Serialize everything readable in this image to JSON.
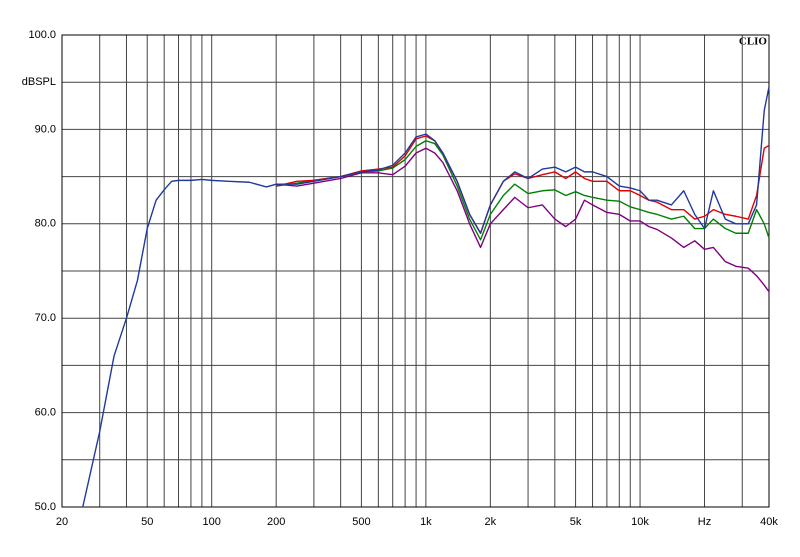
{
  "chart_data": {
    "type": "line",
    "brand": "CLIO",
    "x_log": true,
    "grid": true,
    "xlim": [
      20,
      40000
    ],
    "ylim": [
      50,
      100
    ],
    "xticks": [
      20,
      50,
      100,
      200,
      500,
      {
        "value": 1000,
        "label": "1k"
      },
      {
        "value": 2000,
        "label": "2k"
      },
      {
        "value": 5000,
        "label": "5k"
      },
      {
        "value": 10000,
        "label": "10k"
      },
      {
        "value": 20000,
        "label": "Hz"
      },
      {
        "value": 40000,
        "label": "40k"
      }
    ],
    "x_minor_ticks": [
      30,
      40,
      60,
      70,
      80,
      90,
      300,
      400,
      600,
      700,
      800,
      900,
      3000,
      4000,
      6000,
      7000,
      8000,
      9000,
      30000
    ],
    "yticks": [
      {
        "value": 50,
        "label": "50.0"
      },
      {
        "value": 60,
        "label": "60.0"
      },
      {
        "value": 70,
        "label": "70.0"
      },
      {
        "value": 80,
        "label": "80.0"
      },
      {
        "value": 90,
        "label": "90.0"
      },
      {
        "value": 95,
        "label": "dBSPL"
      },
      {
        "value": 100,
        "label": "100.0"
      }
    ],
    "y_minor_ticks": [
      55,
      65,
      75,
      85
    ],
    "x": [
      25,
      30,
      35,
      40,
      45,
      50,
      55,
      60,
      65,
      70,
      80,
      90,
      100,
      120,
      150,
      180,
      200,
      250,
      300,
      400,
      500,
      600,
      700,
      800,
      900,
      1000,
      1100,
      1200,
      1400,
      1600,
      1800,
      2000,
      2300,
      2600,
      3000,
      3500,
      4000,
      4500,
      5000,
      5500,
      6000,
      7000,
      8000,
      9000,
      10000,
      11000,
      12000,
      14000,
      16000,
      18000,
      20000,
      22000,
      25000,
      28000,
      32000,
      35000,
      38000,
      40000
    ],
    "series": [
      {
        "color": "#800080",
        "values": [
          null,
          null,
          null,
          null,
          null,
          null,
          null,
          null,
          null,
          null,
          null,
          null,
          null,
          null,
          null,
          null,
          84.2,
          84,
          84.3,
          84.8,
          85.4,
          85.4,
          85.2,
          86.1,
          87.5,
          88,
          87.5,
          86.5,
          83.5,
          80,
          77.5,
          80,
          81.5,
          82.8,
          81.7,
          82,
          80.5,
          79.7,
          80.5,
          82.5,
          82,
          81.2,
          81,
          80.3,
          80.3,
          79.7,
          79.4,
          78.5,
          77.5,
          78.2,
          77.3,
          77.5,
          76,
          75.5,
          75.3,
          74.5,
          73.5,
          72.8
        ]
      },
      {
        "color": "#008000",
        "values": [
          null,
          null,
          null,
          null,
          null,
          null,
          null,
          null,
          null,
          null,
          null,
          null,
          null,
          null,
          null,
          null,
          84,
          84.3,
          84.6,
          85,
          85.5,
          85.6,
          85.9,
          86.8,
          88.2,
          88.8,
          88.5,
          87.3,
          84,
          80.5,
          78.3,
          81,
          83,
          84.2,
          83.2,
          83.5,
          83.6,
          83,
          83.4,
          83,
          82.8,
          82.5,
          82.4,
          81.8,
          81.5,
          81.2,
          81,
          80.5,
          80.8,
          79.5,
          79.5,
          80.5,
          79.5,
          79,
          79,
          81.5,
          80,
          78.5
        ]
      },
      {
        "color": "#e00000",
        "values": [
          null,
          null,
          null,
          null,
          null,
          null,
          null,
          null,
          null,
          null,
          null,
          null,
          null,
          null,
          null,
          null,
          84,
          84.5,
          84.6,
          85,
          85.6,
          85.8,
          86,
          87.2,
          89,
          89.3,
          88.8,
          87.5,
          84.5,
          81,
          79,
          82,
          84.5,
          85.3,
          84.8,
          85.2,
          85.5,
          84.8,
          85.5,
          84.8,
          84.5,
          84.5,
          83.5,
          83.5,
          83,
          82.5,
          82.3,
          81.5,
          81.5,
          80.5,
          80.8,
          81.5,
          81,
          80.8,
          80.5,
          83,
          88,
          88.3
        ]
      },
      {
        "color": "#1f3a9e",
        "values": [
          50,
          58,
          66,
          70,
          74,
          79.5,
          82.5,
          83.6,
          84.5,
          84.6,
          84.6,
          84.7,
          84.6,
          84.5,
          84.4,
          83.9,
          84.2,
          84.2,
          84.5,
          85,
          85.5,
          85.7,
          86.2,
          87.5,
          89.2,
          89.5,
          88.8,
          87.5,
          84.5,
          81,
          79,
          82,
          84.5,
          85.5,
          84.8,
          85.8,
          86,
          85.5,
          86,
          85.5,
          85.5,
          85,
          84,
          83.8,
          83.5,
          82.5,
          82.5,
          82,
          83.5,
          81,
          79.5,
          83.5,
          80.5,
          80,
          80,
          82,
          92,
          94.5
        ]
      }
    ]
  }
}
